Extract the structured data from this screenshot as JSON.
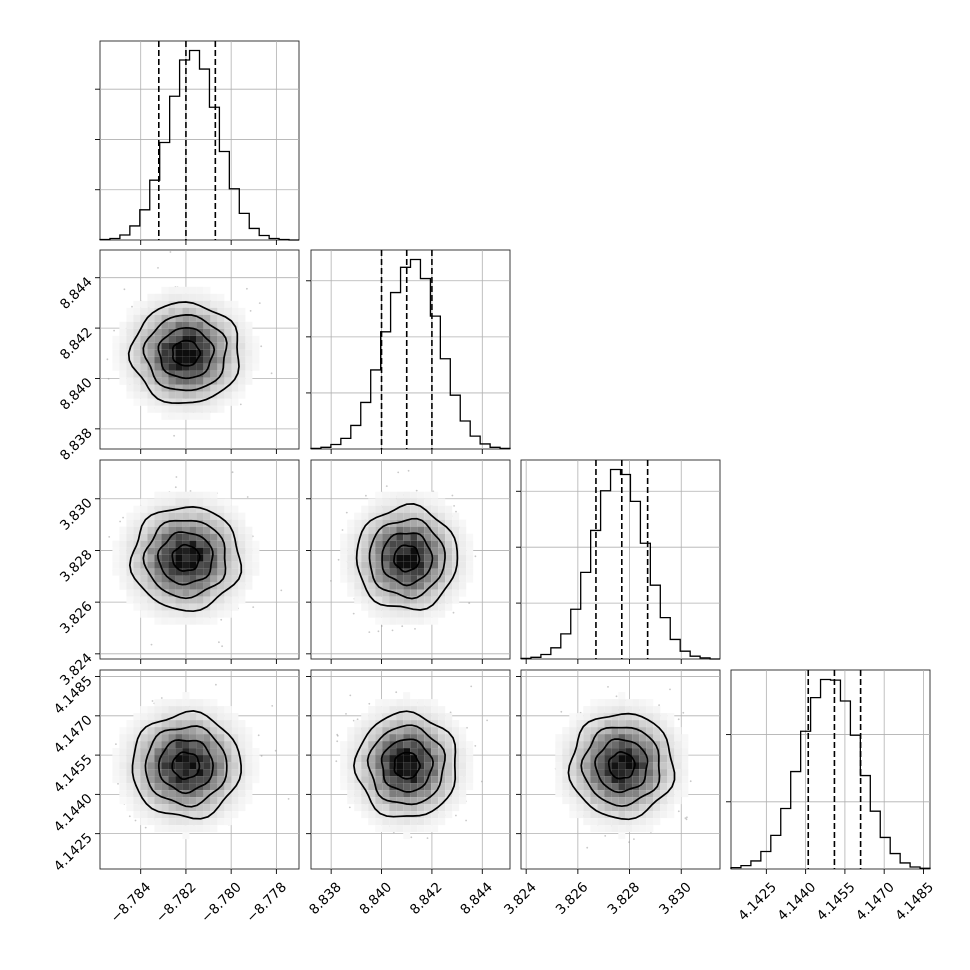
{
  "chart_data": {
    "type": "corner",
    "parameters": 4,
    "grid": true,
    "params": [
      {
        "index": 0,
        "range": [
          -8.7858,
          -8.777
        ],
        "ticks": [
          -8.784,
          -8.782,
          -8.78,
          -8.778
        ],
        "tick_labels": [
          "−8.784",
          "−8.782",
          "−8.780",
          "−8.778"
        ],
        "median": -8.782,
        "sigma": 0.0012,
        "quantiles": [
          -8.7832,
          -8.782,
          -8.7807
        ],
        "hist_counts": [
          1,
          3,
          10,
          28,
          60,
          119,
          194,
          286,
          358,
          377,
          340,
          264,
          176,
          102,
          53,
          23,
          9,
          3,
          1,
          0
        ]
      },
      {
        "index": 1,
        "range": [
          8.8372,
          8.8451
        ],
        "ticks": [
          8.838,
          8.84,
          8.842,
          8.844
        ],
        "tick_labels": [
          "8.838",
          "8.840",
          "8.842",
          "8.844"
        ],
        "median": 8.841,
        "sigma": 0.001,
        "quantiles": [
          8.84,
          8.841,
          8.842
        ],
        "hist_counts": [
          1,
          3,
          8,
          19,
          42,
          83,
          141,
          209,
          279,
          324,
          338,
          304,
          237,
          161,
          96,
          50,
          23,
          9,
          3,
          1
        ]
      },
      {
        "index": 2,
        "range": [
          3.8238,
          3.8315
        ],
        "ticks": [
          3.824,
          3.826,
          3.828,
          3.83
        ],
        "tick_labels": [
          "3.824",
          "3.826",
          "3.828",
          "3.830"
        ],
        "median": 3.8277,
        "sigma": 0.001,
        "quantiles": [
          3.8267,
          3.8277,
          3.8287
        ],
        "hist_counts": [
          1,
          3,
          8,
          20,
          45,
          89,
          155,
          230,
          301,
          339,
          330,
          282,
          207,
          132,
          74,
          35,
          14,
          5,
          2,
          0
        ]
      },
      {
        "index": 3,
        "range": [
          4.14115,
          4.14875
        ],
        "ticks": [
          4.1425,
          4.144,
          4.1455,
          4.147,
          4.1485
        ],
        "tick_labels": [
          "4.1425",
          "4.1440",
          "4.1455",
          "4.1470",
          "4.1485"
        ],
        "median": 4.1451,
        "sigma": 0.001,
        "quantiles": [
          4.1441,
          4.1451,
          4.1461
        ],
        "hist_counts": [
          2,
          5,
          12,
          26,
          50,
          90,
          145,
          205,
          255,
          282,
          281,
          250,
          199,
          139,
          86,
          47,
          23,
          9,
          3,
          1
        ]
      }
    ],
    "density_levels": [
      0.118,
      0.393,
      0.675,
      0.865
    ],
    "correlation": 0
  }
}
